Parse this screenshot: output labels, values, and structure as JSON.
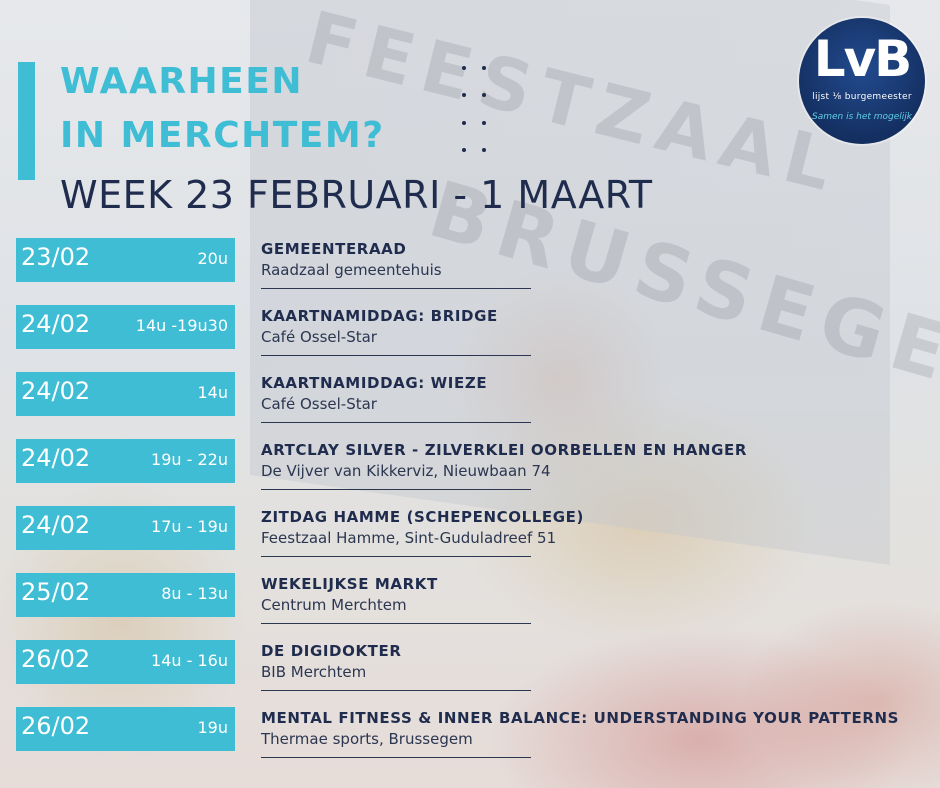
{
  "header": {
    "title_line1": "WAARHEEN",
    "title_line2": "IN MERCHTEM?",
    "week": "WEEK 23 FEBRUARI - 1 MAART"
  },
  "logo": {
    "mark": "LvB",
    "subtitle": "lijst ⅛ burgemeester",
    "slogan": "Samen is het mogelijk"
  },
  "colors": {
    "accent": "#3fbdd4",
    "navy": "#1f2c4d",
    "logo_blue": "#132e5f"
  },
  "events": [
    {
      "date": "23/02",
      "time": "20u",
      "title": "GEMEENTERAAD",
      "location": "Raadzaal gemeentehuis"
    },
    {
      "date": "24/02",
      "time": "14u -19u30",
      "title": "KAARTNAMIDDAG: BRIDGE",
      "location": "Café Ossel-Star"
    },
    {
      "date": "24/02",
      "time": "14u",
      "title": "KAARTNAMIDDAG: WIEZE",
      "location": "Café Ossel-Star"
    },
    {
      "date": "24/02",
      "time": "19u - 22u",
      "title": "ARTCLAY SILVER - ZILVERKLEI OORBELLEN EN HANGER",
      "location": "De Vijver van Kikkerviz, Nieuwbaan 74"
    },
    {
      "date": "24/02",
      "time": "17u - 19u",
      "title": "ZITDAG HAMME (SCHEPENCOLLEGE)",
      "location": "Feestzaal Hamme, Sint-Guduladreef 51"
    },
    {
      "date": "25/02",
      "time": "8u - 13u",
      "title": "WEKELIJKSE MARKT",
      "location": "Centrum Merchtem"
    },
    {
      "date": "26/02",
      "time": "14u - 16u",
      "title": "DE DIGIDOKTER",
      "location": "BIB Merchtem"
    },
    {
      "date": "26/02",
      "time": "19u",
      "title": "MENTAL FITNESS & INNER BALANCE: UNDERSTANDING YOUR PATTERNS",
      "location": "Thermae sports, Brussegem"
    }
  ],
  "background_photo": {
    "wall_lettering_1": "FEESTZAAL",
    "wall_lettering_2": "BRUSSEGEM"
  }
}
